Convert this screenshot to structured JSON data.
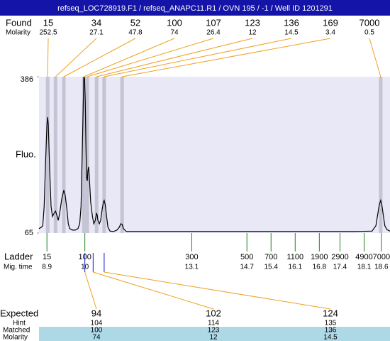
{
  "header": {
    "title": "refseq_LOC728919.F1 / refseq_ANAPC11.R1 / OVN 195 / -1 / Well ID 1201291"
  },
  "chart_data": {
    "type": "electropherogram",
    "y_label": "Fluo.",
    "ylim": [
      65,
      386
    ],
    "yticks": [
      65,
      386
    ],
    "xlim": [
      8.67,
      18.85
    ],
    "trace": {
      "color": "#000000",
      "x": [
        8.67,
        8.74,
        8.78,
        8.82,
        8.86,
        8.9,
        8.92,
        8.94,
        8.98,
        9.02,
        9.06,
        9.11,
        9.15,
        9.19,
        9.23,
        9.27,
        9.33,
        9.39,
        9.43,
        9.48,
        9.52,
        9.56,
        9.64,
        9.72,
        9.8,
        9.85,
        9.89,
        9.93,
        9.97,
        9.99,
        10.01,
        10.03,
        10.05,
        10.07,
        10.09,
        10.11,
        10.13,
        10.17,
        10.22,
        10.26,
        10.3,
        10.34,
        10.36,
        10.38,
        10.42,
        10.46,
        10.5,
        10.54,
        10.56,
        10.59,
        10.63,
        10.67,
        10.73,
        10.83,
        10.93,
        11.0,
        11.04,
        11.08,
        11.12,
        11.2,
        11.65,
        12.68,
        13.71,
        15.76,
        17.82,
        18.33,
        18.44,
        18.5,
        18.54,
        18.58,
        18.62,
        18.66,
        18.7,
        18.76,
        18.85
      ],
      "values": [
        74,
        77,
        80,
        120,
        208,
        288,
        303,
        288,
        193,
        120,
        99,
        106,
        110,
        101,
        91,
        106,
        135,
        153,
        142,
        113,
        84,
        74,
        71,
        71,
        74,
        84,
        120,
        252,
        386,
        383,
        339,
        252,
        179,
        172,
        193,
        201,
        179,
        128,
        99,
        84,
        91,
        106,
        101,
        91,
        84,
        91,
        113,
        129,
        132,
        123,
        99,
        77,
        69,
        68,
        71,
        77,
        84,
        83,
        74,
        68,
        68,
        68,
        68,
        68,
        68,
        69,
        80,
        106,
        123,
        132,
        120,
        99,
        80,
        72,
        69
      ]
    },
    "found": {
      "label": "Found",
      "molarity_label": "Molarity",
      "sizes": [
        15,
        34,
        52,
        100,
        107,
        123,
        136,
        169,
        7000
      ],
      "molarity": [
        252.5,
        27.1,
        47.8,
        74,
        26.4,
        12,
        14.5,
        3.4,
        0.5
      ],
      "x": [
        8.92,
        9.15,
        9.39,
        9.97,
        10.07,
        10.34,
        10.56,
        11.08,
        18.58
      ],
      "band_color": "#c4c4d4",
      "line_color": "#f0a020"
    },
    "ladder": {
      "label": "Ladder",
      "time_label": "Mig. time",
      "color": "#208020",
      "sizes": [
        15,
        100,
        300,
        500,
        700,
        1100,
        1900,
        2900,
        4900,
        7000
      ],
      "times": [
        8.9,
        10,
        13.1,
        14.7,
        15.4,
        16.1,
        16.8,
        17.4,
        18.1,
        18.6
      ]
    },
    "expected": {
      "label": "Expected",
      "color": "#1010d0",
      "sizes": [
        94,
        102,
        124
      ],
      "x": [
        10.0,
        10.24,
        10.56
      ],
      "hint_label": "Hint",
      "hint": [
        104,
        114,
        135
      ],
      "matched_label": "Matched",
      "matched": [
        100,
        123,
        136
      ],
      "molarity_label": "Molarity",
      "molarity": [
        74,
        12,
        14.5
      ]
    }
  }
}
